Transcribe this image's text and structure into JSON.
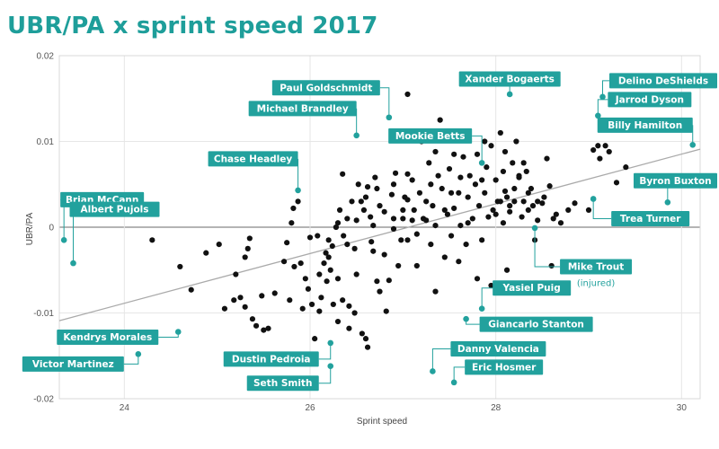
{
  "title": "UBR/PA x sprint speed 2017",
  "colors": {
    "accent": "#22a19d",
    "title": "#1e9e9a",
    "point": "#111111",
    "trend": "#aaaaaa"
  },
  "chart_data": {
    "type": "scatter",
    "title": "UBR/PA x sprint speed 2017",
    "xlabel": "Sprint speed",
    "ylabel": "UBR/PA",
    "xlim": [
      23.3,
      30.2
    ],
    "ylim": [
      -0.02,
      0.02
    ],
    "xticks": [
      24,
      26,
      28,
      30
    ],
    "yticks": [
      0.02,
      0.01,
      0,
      -0.01,
      -0.02
    ],
    "ytick_labels": [
      "0.02",
      "0.01",
      "0",
      "-0.01",
      "-0.02"
    ],
    "grid": true,
    "trendline": {
      "x": [
        23.3,
        30.2
      ],
      "y": [
        -0.0109,
        0.0091
      ]
    },
    "highlighted": [
      {
        "name": "Brian McCann",
        "x": 23.35,
        "y": -0.0015,
        "box": [
          -4,
          -45
        ],
        "anchor": "left"
      },
      {
        "name": "Albert Pujols",
        "x": 23.45,
        "y": -0.0042,
        "box": [
          -4,
          -60
        ],
        "anchor": "left"
      },
      {
        "name": "Chase Headley",
        "x": 25.87,
        "y": 0.0043,
        "box": [
          0,
          -35
        ],
        "anchor": "right"
      },
      {
        "name": "Michael Brandley",
        "x": 26.5,
        "y": 0.0107,
        "box": [
          0,
          -30
        ],
        "anchor": "right"
      },
      {
        "name": "Paul Goldschmidt",
        "x": 26.85,
        "y": 0.0128,
        "box": [
          -10,
          -33
        ],
        "anchor": "right"
      },
      {
        "name": "Mookie Betts",
        "x": 27.85,
        "y": 0.0075,
        "box": [
          -11,
          -30
        ],
        "anchor": "right"
      },
      {
        "name": "Xander Bogaerts",
        "x": 28.15,
        "y": 0.0155,
        "box": [
          0,
          -17
        ],
        "anchor": "center"
      },
      {
        "name": "Delino DeShields",
        "x": 29.15,
        "y": 0.0152,
        "box": [
          11,
          -18
        ],
        "anchor": "left"
      },
      {
        "name": "Jarrod Dyson",
        "x": 29.1,
        "y": 0.013,
        "box": [
          11,
          -18
        ],
        "anchor": "left"
      },
      {
        "name": "Billy Hamilton",
        "x": 30.12,
        "y": 0.0096,
        "box": [
          0,
          -22
        ],
        "anchor": "right"
      },
      {
        "name": "Byron Buxton",
        "x": 29.85,
        "y": 0.0029,
        "box": [
          -34,
          -24
        ],
        "anchor": "left"
      },
      {
        "name": "Trea Turner",
        "x": 29.05,
        "y": 0.0033,
        "box": [
          20,
          22
        ],
        "anchor": "left"
      },
      {
        "name": "Mike Trout",
        "x": 28.42,
        "y": -0.0001,
        "box": [
          28,
          43
        ],
        "anchor": "left"
      },
      {
        "name": "Yasiel Puig",
        "x": 27.85,
        "y": -0.0095,
        "box": [
          12,
          -23
        ],
        "anchor": "left"
      },
      {
        "name": "Giancarlo Stanton",
        "x": 27.68,
        "y": -0.0107,
        "box": [
          15,
          6
        ],
        "anchor": "left"
      },
      {
        "name": "Danny Valencia",
        "x": 27.32,
        "y": -0.0168,
        "box": [
          20,
          -25
        ],
        "anchor": "left"
      },
      {
        "name": "Eric Hosmer",
        "x": 27.55,
        "y": -0.0181,
        "box": [
          12,
          -17
        ],
        "anchor": "left"
      },
      {
        "name": "Kendrys Morales",
        "x": 24.58,
        "y": -0.0122,
        "box": [
          -22,
          6
        ],
        "anchor": "right"
      },
      {
        "name": "Victor Martinez",
        "x": 24.15,
        "y": -0.0148,
        "box": [
          -16,
          11
        ],
        "anchor": "right"
      },
      {
        "name": "Dustin Pedroia",
        "x": 26.22,
        "y": -0.0135,
        "box": [
          -13,
          18
        ],
        "anchor": "right"
      },
      {
        "name": "Seth Smith",
        "x": 26.22,
        "y": -0.0162,
        "box": [
          -13,
          19
        ],
        "anchor": "right"
      }
    ],
    "annotations": [
      {
        "text": "(injured)",
        "player": "Mike Trout"
      }
    ],
    "points": [
      [
        24.3,
        -0.0015
      ],
      [
        24.6,
        -0.0046
      ],
      [
        24.72,
        -0.0073
      ],
      [
        24.88,
        -0.003
      ],
      [
        25.02,
        -0.002
      ],
      [
        25.08,
        -0.0095
      ],
      [
        25.18,
        -0.0085
      ],
      [
        25.25,
        -0.0082
      ],
      [
        25.2,
        -0.0055
      ],
      [
        25.3,
        -0.0035
      ],
      [
        25.33,
        -0.0025
      ],
      [
        25.3,
        -0.0093
      ],
      [
        25.38,
        -0.0107
      ],
      [
        25.42,
        -0.0115
      ],
      [
        25.5,
        -0.012
      ],
      [
        25.55,
        -0.0118
      ],
      [
        25.48,
        -0.008
      ],
      [
        25.35,
        -0.0013
      ],
      [
        25.62,
        -0.0077
      ],
      [
        25.72,
        -0.004
      ],
      [
        25.75,
        -0.0018
      ],
      [
        25.8,
        0.0005
      ],
      [
        25.82,
        0.0022
      ],
      [
        25.83,
        -0.0046
      ],
      [
        25.87,
        0.003
      ],
      [
        25.95,
        -0.006
      ],
      [
        25.98,
        -0.0072
      ],
      [
        26.02,
        -0.009
      ],
      [
        26.08,
        -0.001
      ],
      [
        26.05,
        -0.013
      ],
      [
        26.1,
        -0.0055
      ],
      [
        26.12,
        -0.0082
      ],
      [
        26.15,
        -0.0042
      ],
      [
        26.17,
        -0.003
      ],
      [
        26.2,
        -0.0015
      ],
      [
        26.18,
        -0.0063
      ],
      [
        26.22,
        -0.005
      ],
      [
        26.24,
        -0.0022
      ],
      [
        26.28,
        0.0
      ],
      [
        26.3,
        0.0005
      ],
      [
        26.32,
        0.002
      ],
      [
        26.3,
        -0.011
      ],
      [
        26.36,
        -0.001
      ],
      [
        26.35,
        0.0062
      ],
      [
        26.4,
        0.001
      ],
      [
        26.42,
        -0.0118
      ],
      [
        26.45,
        0.003
      ],
      [
        26.48,
        -0.0025
      ],
      [
        26.5,
        0.0008
      ],
      [
        26.52,
        0.005
      ],
      [
        26.5,
        -0.0055
      ],
      [
        26.56,
        -0.0124
      ],
      [
        26.6,
        -0.013
      ],
      [
        26.62,
        -0.014
      ],
      [
        26.58,
        0.002
      ],
      [
        26.6,
        0.0035
      ],
      [
        26.62,
        0.0047
      ],
      [
        26.65,
        0.0012
      ],
      [
        26.66,
        -0.0017
      ],
      [
        26.7,
        0.0058
      ],
      [
        26.68,
        0.0002
      ],
      [
        26.72,
        -0.0063
      ],
      [
        26.75,
        -0.0075
      ],
      [
        26.75,
        0.0025
      ],
      [
        26.8,
        -0.0032
      ],
      [
        26.82,
        -0.0098
      ],
      [
        26.88,
        0.0038
      ],
      [
        26.9,
        0.001
      ],
      [
        26.92,
        0.0063
      ],
      [
        26.95,
        -0.0045
      ],
      [
        26.98,
        -0.0015
      ],
      [
        27.0,
        0.002
      ],
      [
        27.02,
        0.0035
      ],
      [
        27.05,
        0.0155
      ],
      [
        27.05,
        0.0062
      ],
      [
        27.1,
        0.0008
      ],
      [
        27.12,
        0.002
      ],
      [
        27.15,
        -0.0008
      ],
      [
        27.18,
        0.004
      ],
      [
        27.2,
        0.01
      ],
      [
        27.22,
        0.001
      ],
      [
        27.25,
        0.003
      ],
      [
        27.28,
        0.0075
      ],
      [
        27.3,
        -0.002
      ],
      [
        27.32,
        0.0025
      ],
      [
        27.35,
        0.0088
      ],
      [
        27.38,
        0.006
      ],
      [
        27.4,
        0.0125
      ],
      [
        27.42,
        0.0045
      ],
      [
        27.45,
        -0.0035
      ],
      [
        27.48,
        0.0015
      ],
      [
        27.5,
        0.0068
      ],
      [
        27.52,
        -0.001
      ],
      [
        27.55,
        0.0022
      ],
      [
        27.58,
        0.0105
      ],
      [
        27.6,
        0.004
      ],
      [
        27.62,
        0.0002
      ],
      [
        27.65,
        0.0082
      ],
      [
        27.68,
        -0.002
      ],
      [
        27.7,
        0.0035
      ],
      [
        27.72,
        0.006
      ],
      [
        27.75,
        0.001
      ],
      [
        27.78,
        0.005
      ],
      [
        27.8,
        0.0085
      ],
      [
        27.82,
        0.0025
      ],
      [
        27.85,
        -0.0015
      ],
      [
        27.88,
        0.004
      ],
      [
        27.9,
        0.007
      ],
      [
        27.92,
        0.0012
      ],
      [
        27.95,
        0.0095
      ],
      [
        27.97,
        0.002
      ],
      [
        28.0,
        0.0055
      ],
      [
        28.02,
        0.003
      ],
      [
        28.05,
        0.011
      ],
      [
        28.08,
        0.0005
      ],
      [
        28.1,
        0.0042
      ],
      [
        28.12,
        -0.005
      ],
      [
        28.15,
        0.0018
      ],
      [
        28.18,
        0.0075
      ],
      [
        28.2,
        0.003
      ],
      [
        28.22,
        0.01
      ],
      [
        28.25,
        0.006
      ],
      [
        28.28,
        0.0012
      ],
      [
        28.3,
        0.003
      ],
      [
        28.33,
        0.0065
      ],
      [
        28.35,
        0.002
      ],
      [
        28.38,
        0.0045
      ],
      [
        28.42,
        -0.0015
      ],
      [
        28.45,
        0.0008
      ],
      [
        28.5,
        0.0028
      ],
      [
        28.52,
        0.0035
      ],
      [
        28.55,
        0.008
      ],
      [
        28.58,
        0.0048
      ],
      [
        28.6,
        -0.0045
      ],
      [
        28.62,
        0.001
      ],
      [
        28.7,
        0.0005
      ],
      [
        28.78,
        0.002
      ],
      [
        28.85,
        0.0028
      ],
      [
        29.0,
        0.002
      ],
      [
        29.05,
        0.009
      ],
      [
        29.1,
        0.0095
      ],
      [
        29.12,
        0.008
      ],
      [
        29.18,
        0.0095
      ],
      [
        29.22,
        0.0088
      ],
      [
        29.3,
        0.0052
      ],
      [
        29.4,
        0.007
      ],
      [
        27.95,
        -0.0068
      ],
      [
        27.35,
        -0.0075
      ],
      [
        27.15,
        -0.0045
      ],
      [
        26.85,
        -0.0062
      ],
      [
        27.05,
        -0.0015
      ],
      [
        27.6,
        -0.004
      ],
      [
        27.8,
        -0.006
      ],
      [
        26.35,
        -0.0085
      ],
      [
        26.42,
        -0.0092
      ],
      [
        26.48,
        -0.01
      ],
      [
        26.25,
        -0.009
      ],
      [
        26.1,
        -0.0098
      ],
      [
        25.92,
        -0.0095
      ],
      [
        25.78,
        -0.0085
      ],
      [
        25.9,
        -0.0042
      ],
      [
        26.0,
        -0.0012
      ],
      [
        26.72,
        0.0045
      ],
      [
        26.9,
        0.005
      ],
      [
        27.1,
        0.0055
      ],
      [
        27.3,
        0.005
      ],
      [
        27.52,
        0.004
      ],
      [
        28.08,
        0.0065
      ],
      [
        28.25,
        0.0058
      ],
      [
        28.4,
        0.0025
      ],
      [
        28.65,
        0.0015
      ],
      [
        27.85,
        0.0055
      ],
      [
        28.0,
        0.0015
      ],
      [
        28.12,
        0.0035
      ],
      [
        27.62,
        0.0058
      ],
      [
        27.45,
        0.002
      ],
      [
        27.25,
        0.0008
      ],
      [
        27.05,
        0.0032
      ],
      [
        26.8,
        0.0018
      ],
      [
        26.55,
        0.003
      ],
      [
        26.9,
        -0.0002
      ],
      [
        27.35,
        0.0002
      ],
      [
        27.7,
        0.0005
      ],
      [
        28.2,
        0.0045
      ],
      [
        28.45,
        0.003
      ],
      [
        28.3,
        0.0075
      ],
      [
        28.05,
        0.003
      ],
      [
        27.55,
        0.0085
      ],
      [
        26.68,
        -0.0028
      ],
      [
        26.4,
        -0.002
      ],
      [
        26.2,
        -0.0035
      ],
      [
        26.3,
        -0.006
      ],
      [
        27.0,
        0.001
      ],
      [
        27.88,
        0.01
      ],
      [
        28.15,
        0.0025
      ],
      [
        28.35,
        0.004
      ],
      [
        28.1,
        0.0088
      ]
    ]
  }
}
